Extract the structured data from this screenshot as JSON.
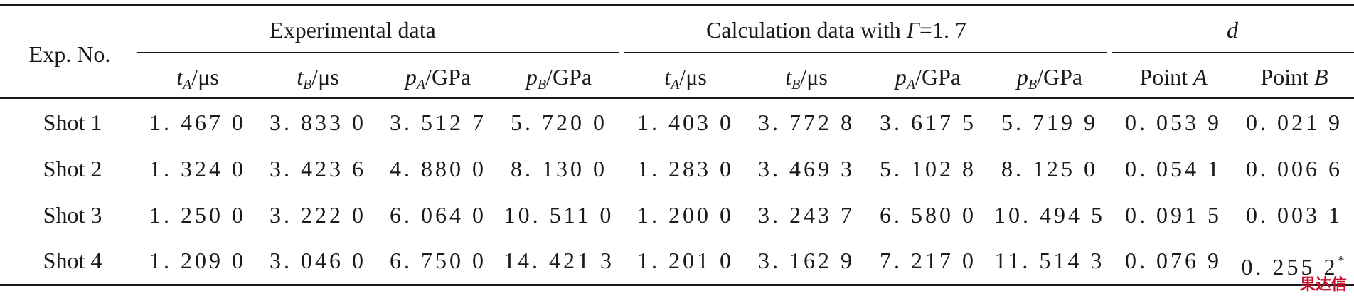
{
  "header": {
    "exp_no": "Exp. No.",
    "group_experimental": "Experimental data",
    "group_calc_prefix": "Calculation data with ",
    "group_calc_gamma": "Γ",
    "group_calc_suffix": "=1. 7",
    "group_d": "d",
    "sub_cols": [
      {
        "var": "t",
        "sub": "A",
        "unit": "/μs"
      },
      {
        "var": "t",
        "sub": "B",
        "unit": "/μs"
      },
      {
        "var": "p",
        "sub": "A",
        "unit": "/GPa"
      },
      {
        "var": "p",
        "sub": "B",
        "unit": "/GPa"
      },
      {
        "var": "t",
        "sub": "A",
        "unit": "/μs"
      },
      {
        "var": "t",
        "sub": "B",
        "unit": "/μs"
      },
      {
        "var": "p",
        "sub": "A",
        "unit": "/GPa"
      },
      {
        "var": "p",
        "sub": "B",
        "unit": "/GPa"
      }
    ],
    "point_a_prefix": "Point ",
    "point_a_letter": "A",
    "point_b_prefix": "Point ",
    "point_b_letter": "B"
  },
  "rows": [
    {
      "label": "Shot 1",
      "cells": [
        "1. 467 0",
        "3. 833 0",
        "3. 512 7",
        "5. 720 0",
        "1. 403 0",
        "3. 772 8",
        "3. 617 5",
        "5. 719 9",
        "0. 053 9",
        "0. 021 9"
      ],
      "mark": ""
    },
    {
      "label": "Shot 2",
      "cells": [
        "1. 324 0",
        "3. 423 6",
        "4. 880 0",
        "8. 130 0",
        "1. 283 0",
        "3. 469 3",
        "5. 102 8",
        "8. 125 0",
        "0. 054 1",
        "0. 006 6"
      ],
      "mark": ""
    },
    {
      "label": "Shot 3",
      "cells": [
        "1. 250 0",
        "3. 222 0",
        "6. 064 0",
        "10. 511 0",
        "1. 200 0",
        "3. 243 7",
        "6. 580 0",
        "10. 494 5",
        "0. 091 5",
        "0. 003 1"
      ],
      "mark": ""
    },
    {
      "label": "Shot 4",
      "cells": [
        "1. 209 0",
        "3. 046 0",
        "6. 750 0",
        "14. 421 3",
        "1. 201 0",
        "3. 162 9",
        "7. 217 0",
        "11. 514 3",
        "0. 076 9",
        "0. 255 2"
      ],
      "mark": "*"
    }
  ],
  "watermark": "果达信"
}
